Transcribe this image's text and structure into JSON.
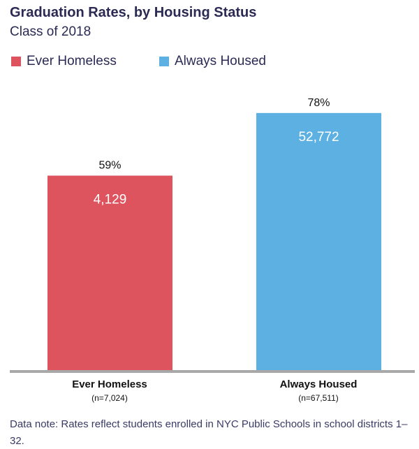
{
  "chart_data": {
    "type": "bar",
    "title": "Graduation Rates, by Housing Status",
    "subtitle": "Class of 2018",
    "categories": [
      "Ever Homeless",
      "Always Housed"
    ],
    "category_notes": [
      "(n=7,024)",
      "(n=67,511)"
    ],
    "values": [
      59,
      78
    ],
    "value_labels": [
      "59%",
      "78%"
    ],
    "inner_labels": [
      "4,129",
      "52,772"
    ],
    "colors": [
      "#dd545f",
      "#5cb1e2"
    ],
    "legend": [
      {
        "name": "Ever Homeless",
        "color": "#dd545f"
      },
      {
        "name": "Always Housed",
        "color": "#5cb1e2"
      }
    ],
    "legend_position": "top-left",
    "ylim": [
      0,
      100
    ],
    "grid": false,
    "axis_color": "#a8a8a8",
    "note": "Data note: Rates reflect students enrolled in NYC Public Schools in school districts 1–32."
  }
}
